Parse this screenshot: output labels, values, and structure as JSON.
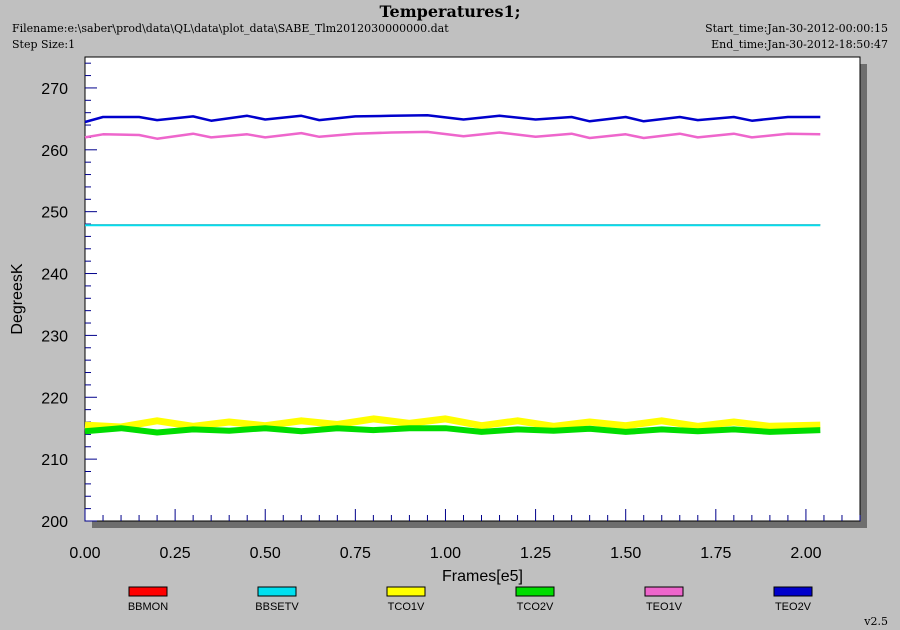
{
  "header": {
    "title": "Temperatures1;",
    "filename": "Filename:e:\\saber\\prod\\data\\QL\\data\\plot_data\\SABE_Tlm2012030000000.dat",
    "step_size": "Step Size:1",
    "start_time": "Start_time:Jan-30-2012-00:00:15",
    "end_time": "End_time:Jan-30-2012-18:50:47"
  },
  "version": "v2.5",
  "chart_data": {
    "type": "line",
    "title": "Temperatures1;",
    "xlabel": "Frames[e5]",
    "ylabel": "DegreesK",
    "xlim": [
      0.0,
      2.15
    ],
    "ylim": [
      200,
      275
    ],
    "x_ticks": [
      "0.00",
      "0.25",
      "0.50",
      "0.75",
      "1.00",
      "1.25",
      "1.50",
      "1.75",
      "2.00"
    ],
    "y_ticks": [
      "200",
      "210",
      "220",
      "230",
      "240",
      "250",
      "260",
      "270"
    ],
    "grid": false,
    "legend_position": "bottom",
    "series": [
      {
        "name": "BBMON",
        "color": "#ff0000",
        "x": [
          0.0,
          2.04
        ],
        "values": [
          247.9,
          247.9
        ]
      },
      {
        "name": "BBSETV",
        "color": "#00e0f0",
        "x": [
          0.0,
          0.25,
          0.5,
          0.75,
          1.0,
          1.25,
          1.5,
          1.75,
          2.04
        ],
        "values": [
          247.8,
          247.8,
          247.8,
          247.8,
          247.8,
          247.8,
          247.8,
          247.8,
          247.8
        ]
      },
      {
        "name": "TCO1V",
        "color": "#ffff00",
        "x": [
          0.0,
          0.1,
          0.2,
          0.3,
          0.4,
          0.5,
          0.6,
          0.7,
          0.8,
          0.9,
          1.0,
          1.1,
          1.2,
          1.3,
          1.4,
          1.5,
          1.6,
          1.7,
          1.8,
          1.9,
          2.04
        ],
        "values": [
          215.5,
          215.2,
          216.2,
          215.3,
          216.0,
          215.4,
          216.2,
          215.6,
          216.5,
          215.8,
          216.5,
          215.4,
          216.2,
          215.3,
          216.0,
          215.4,
          216.2,
          215.3,
          216.0,
          215.3,
          215.5
        ]
      },
      {
        "name": "TCO2V",
        "color": "#00dd00",
        "x": [
          0.0,
          0.1,
          0.2,
          0.3,
          0.4,
          0.5,
          0.6,
          0.7,
          0.8,
          0.9,
          1.0,
          1.1,
          1.2,
          1.3,
          1.4,
          1.5,
          1.6,
          1.7,
          1.8,
          1.9,
          2.04
        ],
        "values": [
          214.5,
          215.0,
          214.3,
          214.8,
          214.6,
          215.0,
          214.5,
          215.0,
          214.7,
          215.0,
          215.0,
          214.4,
          214.8,
          214.6,
          214.9,
          214.4,
          214.8,
          214.5,
          214.8,
          214.4,
          214.7
        ]
      },
      {
        "name": "TEO1V",
        "color": "#ee66cc",
        "x": [
          0.0,
          0.05,
          0.15,
          0.2,
          0.3,
          0.35,
          0.45,
          0.5,
          0.6,
          0.65,
          0.75,
          0.85,
          0.95,
          1.05,
          1.15,
          1.25,
          1.35,
          1.4,
          1.5,
          1.55,
          1.65,
          1.7,
          1.8,
          1.85,
          1.95,
          2.04
        ],
        "values": [
          262.0,
          262.5,
          262.4,
          261.8,
          262.6,
          262.0,
          262.5,
          262.0,
          262.7,
          262.1,
          262.6,
          262.8,
          262.9,
          262.2,
          262.8,
          262.1,
          262.6,
          261.9,
          262.5,
          261.9,
          262.6,
          262.0,
          262.6,
          262.0,
          262.6,
          262.5
        ]
      },
      {
        "name": "TEO2V",
        "color": "#0000cc",
        "x": [
          0.0,
          0.05,
          0.15,
          0.2,
          0.3,
          0.35,
          0.45,
          0.5,
          0.6,
          0.65,
          0.75,
          0.85,
          0.95,
          1.05,
          1.15,
          1.25,
          1.35,
          1.4,
          1.5,
          1.55,
          1.65,
          1.7,
          1.8,
          1.85,
          1.95,
          2.04
        ],
        "values": [
          264.5,
          265.3,
          265.3,
          264.8,
          265.4,
          264.7,
          265.5,
          264.9,
          265.5,
          264.8,
          265.4,
          265.5,
          265.6,
          264.9,
          265.5,
          264.9,
          265.3,
          264.6,
          265.3,
          264.6,
          265.3,
          264.8,
          265.3,
          264.7,
          265.3,
          265.3
        ]
      }
    ]
  }
}
